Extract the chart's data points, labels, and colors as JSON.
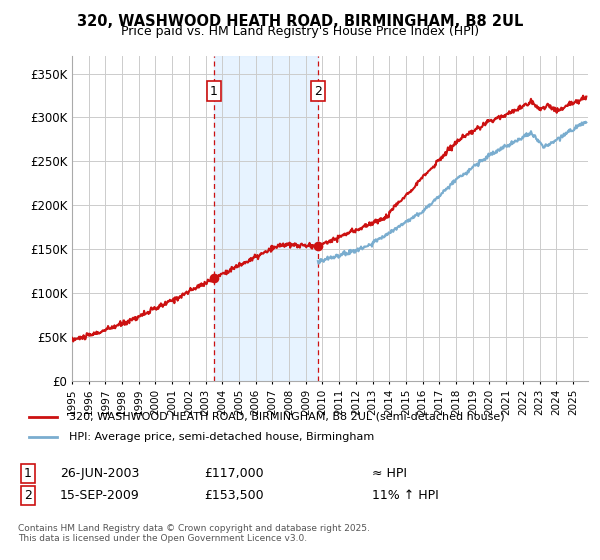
{
  "title": "320, WASHWOOD HEATH ROAD, BIRMINGHAM, B8 2UL",
  "subtitle": "Price paid vs. HM Land Registry's House Price Index (HPI)",
  "ylim": [
    0,
    370000
  ],
  "xlim_start": 1995.0,
  "xlim_end": 2025.9,
  "yticks": [
    0,
    50000,
    100000,
    150000,
    200000,
    250000,
    300000,
    350000
  ],
  "ytick_labels": [
    "£0",
    "£50K",
    "£100K",
    "£150K",
    "£200K",
    "£250K",
    "£300K",
    "£350K"
  ],
  "hpi_color": "#7aadcf",
  "price_color": "#cc1111",
  "shade_color": "#ddeeff",
  "bg_color": "#ffffff",
  "grid_color": "#cccccc",
  "purchase1_date": 2003.48,
  "purchase1_price": 117000,
  "purchase2_date": 2009.71,
  "purchase2_price": 153500,
  "legend_line1": "320, WASHWOOD HEATH ROAD, BIRMINGHAM, B8 2UL (semi-detached house)",
  "legend_line2": "HPI: Average price, semi-detached house, Birmingham",
  "note1_date": "26-JUN-2003",
  "note1_price": "£117,000",
  "note1_hpi": "≈ HPI",
  "note2_date": "15-SEP-2009",
  "note2_price": "£153,500",
  "note2_hpi": "11% ↑ HPI",
  "footer": "Contains HM Land Registry data © Crown copyright and database right 2025.\nThis data is licensed under the Open Government Licence v3.0."
}
